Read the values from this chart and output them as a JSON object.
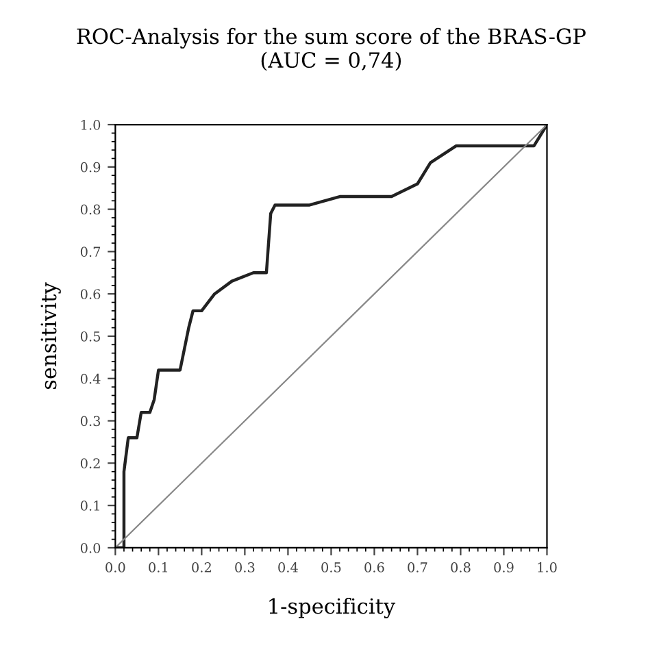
{
  "chart_data": {
    "type": "line",
    "title": "ROC-Analysis for the sum score of the BRAS-GP\n(AUC = 0,74)",
    "xlabel": "1-specificity",
    "ylabel": "sensitivity",
    "series": [
      {
        "color": "#222222",
        "x": [
          0.0,
          0.02,
          0.02,
          0.03,
          0.05,
          0.06,
          0.08,
          0.09,
          0.1,
          0.15,
          0.17,
          0.18,
          0.2,
          0.23,
          0.27,
          0.32,
          0.35,
          0.36,
          0.37,
          0.4,
          0.45,
          0.52,
          0.64,
          0.7,
          0.73,
          0.79,
          0.97,
          1.0
        ],
        "values": [
          0.0,
          0.0,
          0.18,
          0.26,
          0.26,
          0.32,
          0.32,
          0.35,
          0.42,
          0.42,
          0.52,
          0.56,
          0.56,
          0.6,
          0.63,
          0.65,
          0.65,
          0.79,
          0.81,
          0.81,
          0.81,
          0.83,
          0.83,
          0.86,
          0.91,
          0.95,
          0.95,
          1.0
        ]
      },
      {
        "color": "#888888",
        "x": [
          0.0,
          1.0
        ],
        "values": [
          0.0,
          1.0
        ]
      }
    ],
    "xlim": [
      0,
      1
    ],
    "ylim": [
      0,
      1
    ],
    "xticks": [
      {
        "value": 0,
        "label": "0.0"
      },
      0.1,
      0.2,
      0.3,
      0.4,
      0.5,
      0.6,
      0.7,
      0.8,
      0.9,
      {
        "value": 1,
        "label": "1.0"
      }
    ],
    "yticks": [
      {
        "value": 0,
        "label": "0.0"
      },
      0.1,
      0.2,
      0.3,
      0.4,
      0.5,
      0.6,
      0.7,
      0.8,
      0.9,
      {
        "value": 1,
        "label": "1.0"
      }
    ],
    "grid": false,
    "legend": false,
    "marker": "none",
    "line_style": "solid"
  }
}
